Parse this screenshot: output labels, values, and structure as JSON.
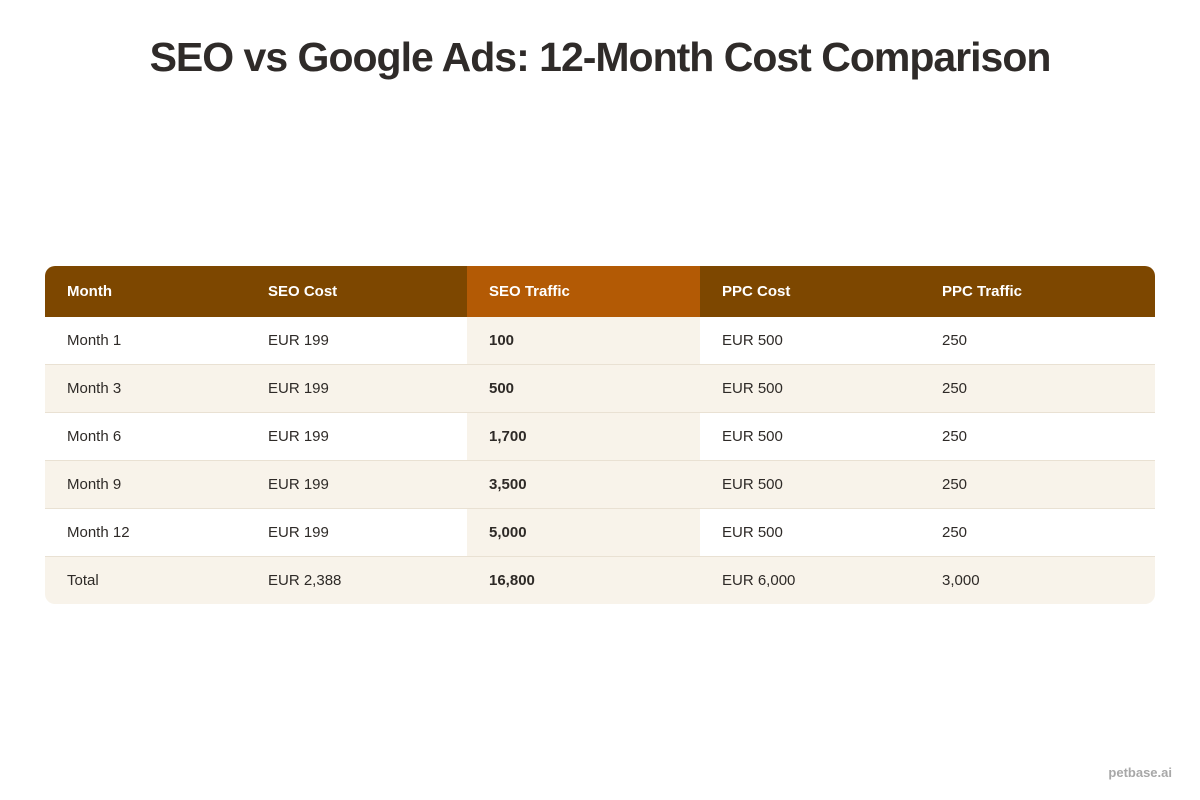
{
  "title": "SEO vs Google Ads: 12-Month Cost Comparison",
  "watermark": "petbase.ai",
  "colors": {
    "header": "#7d4700",
    "highlight_header": "#b35a05",
    "stripe": "#f8f3ea"
  },
  "table": {
    "headers": [
      "Month",
      "SEO Cost",
      "SEO Traffic",
      "PPC Cost",
      "PPC Traffic"
    ],
    "rows": [
      [
        "Month 1",
        "EUR 199",
        "100",
        "EUR 500",
        "250"
      ],
      [
        "Month 3",
        "EUR 199",
        "500",
        "EUR 500",
        "250"
      ],
      [
        "Month 6",
        "EUR 199",
        "1,700",
        "EUR 500",
        "250"
      ],
      [
        "Month 9",
        "EUR 199",
        "3,500",
        "EUR 500",
        "250"
      ],
      [
        "Month 12",
        "EUR 199",
        "5,000",
        "EUR 500",
        "250"
      ],
      [
        "Total",
        "EUR 2,388",
        "16,800",
        "EUR 6,000",
        "3,000"
      ]
    ]
  },
  "chart_data": {
    "type": "table",
    "title": "SEO vs Google Ads: 12-Month Cost Comparison",
    "columns": [
      "Month",
      "SEO Cost",
      "SEO Traffic",
      "PPC Cost",
      "PPC Traffic"
    ],
    "highlighted_column": "SEO Traffic",
    "rows": [
      {
        "Month": "Month 1",
        "SEO Cost": "EUR 199",
        "SEO Traffic": 100,
        "PPC Cost": "EUR 500",
        "PPC Traffic": 250
      },
      {
        "Month": "Month 3",
        "SEO Cost": "EUR 199",
        "SEO Traffic": 500,
        "PPC Cost": "EUR 500",
        "PPC Traffic": 250
      },
      {
        "Month": "Month 6",
        "SEO Cost": "EUR 199",
        "SEO Traffic": 1700,
        "PPC Cost": "EUR 500",
        "PPC Traffic": 250
      },
      {
        "Month": "Month 9",
        "SEO Cost": "EUR 199",
        "SEO Traffic": 3500,
        "PPC Cost": "EUR 500",
        "PPC Traffic": 250
      },
      {
        "Month": "Month 12",
        "SEO Cost": "EUR 199",
        "SEO Traffic": 5000,
        "PPC Cost": "EUR 500",
        "PPC Traffic": 250
      },
      {
        "Month": "Total",
        "SEO Cost": "EUR 2,388",
        "SEO Traffic": 16800,
        "PPC Cost": "EUR 6,000",
        "PPC Traffic": 3000
      }
    ]
  }
}
